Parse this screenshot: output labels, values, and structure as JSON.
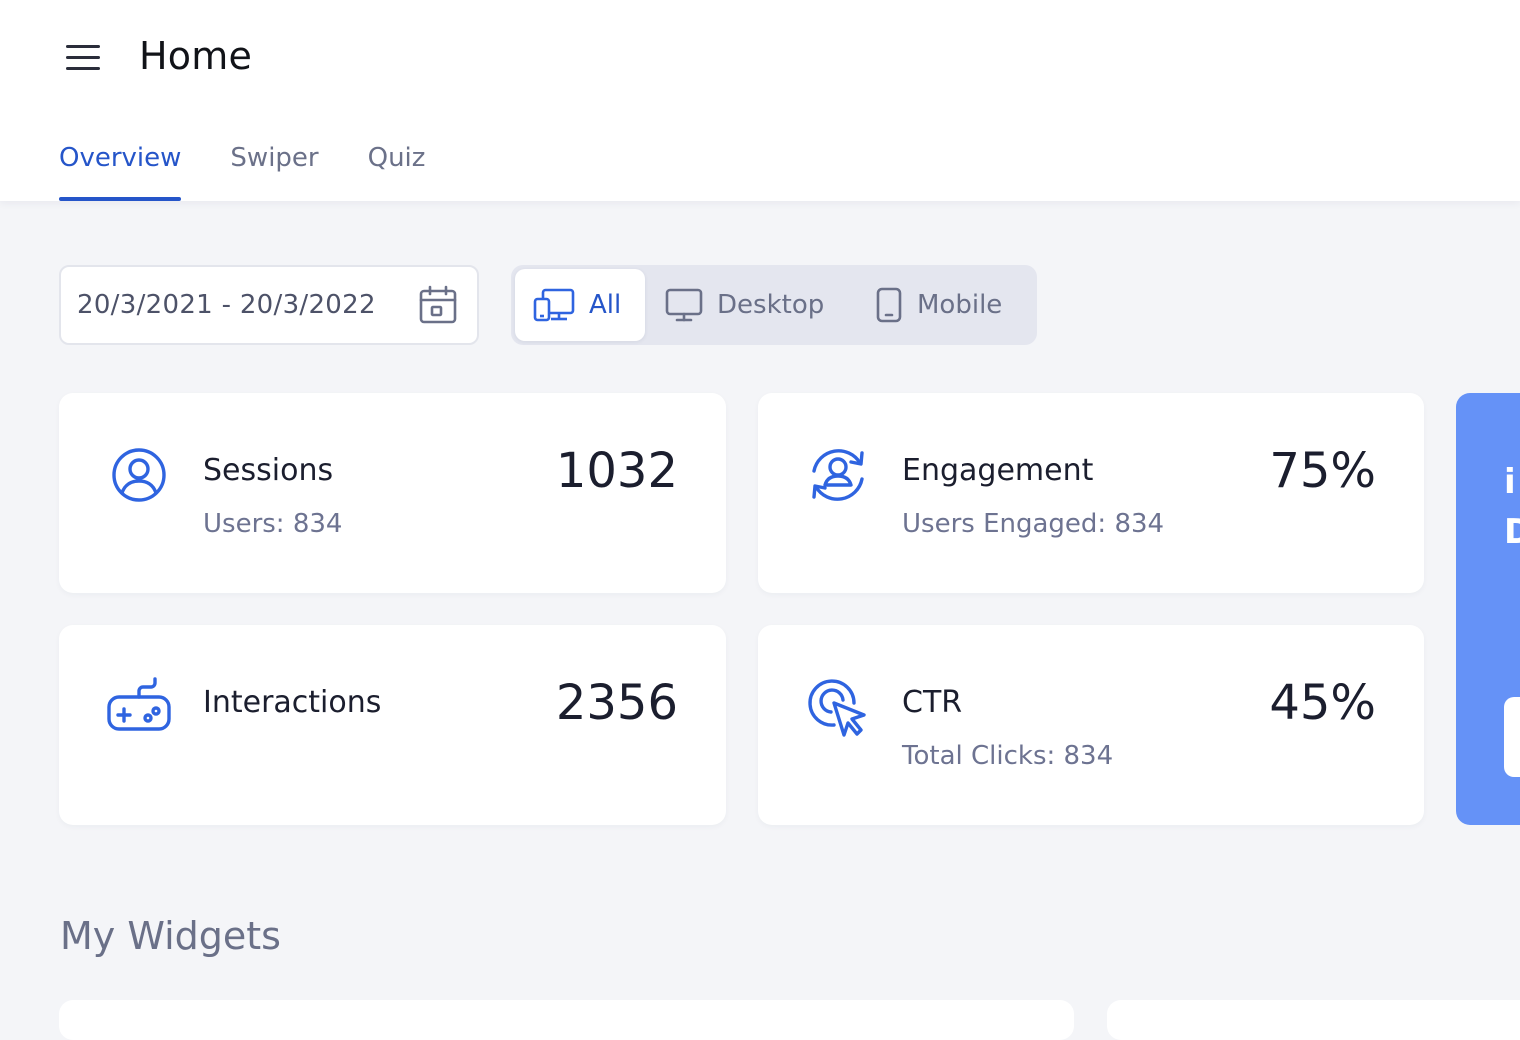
{
  "header": {
    "menu_icon": "hamburger-menu-icon",
    "title": "Home",
    "tabs": [
      {
        "label": "Overview",
        "active": true
      },
      {
        "label": "Swiper",
        "active": false
      },
      {
        "label": "Quiz",
        "active": false
      }
    ]
  },
  "filters": {
    "date_range": "20/3/2021 - 20/3/2022",
    "date_icon": "calendar-icon",
    "devices": [
      {
        "label": "All",
        "icon": "all-devices-icon",
        "active": true
      },
      {
        "label": "Desktop",
        "icon": "desktop-icon",
        "active": false
      },
      {
        "label": "Mobile",
        "icon": "mobile-icon",
        "active": false
      }
    ]
  },
  "stats": [
    {
      "title": "Sessions",
      "subtitle": "Users: 834",
      "value": "1032",
      "icon": "user-icon"
    },
    {
      "title": "Engagement",
      "subtitle": "Users Engaged: 834",
      "value": "75%",
      "icon": "engagement-icon"
    },
    {
      "title": "Interactions",
      "subtitle": "",
      "value": "2356",
      "icon": "gamepad-icon"
    },
    {
      "title": "CTR",
      "subtitle": "Total Clicks: 834",
      "value": "45%",
      "icon": "click-cursor-icon"
    }
  ],
  "promo": {
    "line1": "i",
    "line2": "D"
  },
  "widgets": {
    "section_title": "My Widgets"
  },
  "colors": {
    "accent": "#2555c9",
    "icon_blue": "#2f64e0",
    "promo_bg": "#6592f7",
    "page_bg": "#f4f5f8",
    "muted_text": "#6d7391"
  }
}
